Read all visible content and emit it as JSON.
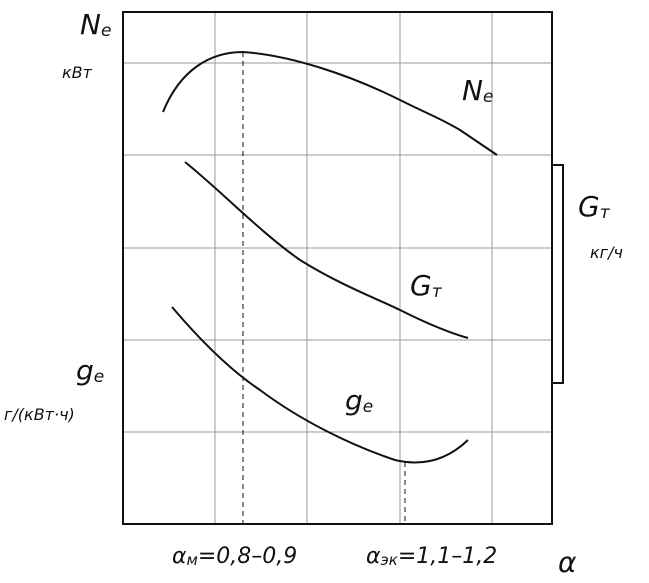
{
  "axes": {
    "power": {
      "symbol": "N",
      "subscript": "e",
      "unit": "кВт"
    },
    "fuel_flow": {
      "symbol": "G",
      "subscript": "т",
      "unit": "кг/ч"
    },
    "specific_consumption": {
      "symbol": "g",
      "subscript": "е",
      "unit": "г/(кВт·ч)"
    },
    "x": "α"
  },
  "curves": [
    {
      "symbol": "N",
      "subscript": "e"
    },
    {
      "symbol": "G",
      "subscript": "т"
    },
    {
      "symbol": "g",
      "subscript": "е"
    }
  ],
  "markers": [
    {
      "symbol": "α",
      "subscript": "м",
      "range": "=0,8–0,9"
    },
    {
      "symbol": "α",
      "subscript": "эк",
      "range": "=1,1–1,2"
    }
  ]
}
